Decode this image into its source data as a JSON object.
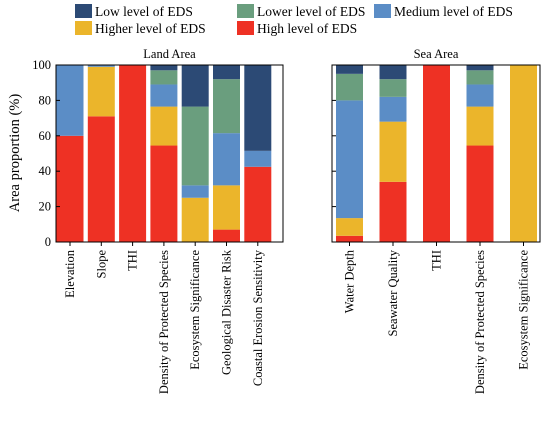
{
  "chart_data": {
    "type": "bar",
    "stacked": true,
    "ylabel": "Area proportion (%)",
    "ylim": [
      0,
      100
    ],
    "yticks": [
      0,
      20,
      40,
      60,
      80,
      100
    ],
    "legend": [
      {
        "name": "Low level of EDS",
        "color": "#2c4a75"
      },
      {
        "name": "Lower level of EDS",
        "color": "#6a9e7e"
      },
      {
        "name": "Medium level of EDS",
        "color": "#5b8dc6"
      },
      {
        "name": "Higher level of EDS",
        "color": "#ebb52b"
      },
      {
        "name": "High level of EDS",
        "color": "#ee3124"
      }
    ],
    "panels": [
      {
        "title": "Land Area",
        "categories": [
          "Elevation",
          "Slope",
          "THI",
          "Density of Protected Species",
          "Ecosystem Significance",
          "Geological Disaster Risk",
          "Coastal Erosion Sensitivity"
        ],
        "series": [
          {
            "name": "High level of EDS",
            "values": [
              60,
              71,
              100,
              54.5,
              0,
              7,
              42.5
            ]
          },
          {
            "name": "Higher level of EDS",
            "values": [
              0,
              28,
              0,
              22,
              25,
              25,
              0
            ]
          },
          {
            "name": "Medium level of EDS",
            "values": [
              40,
              1,
              0,
              12.5,
              7,
              29.5,
              9
            ]
          },
          {
            "name": "Lower level of EDS",
            "values": [
              0,
              0,
              0,
              8,
              44.5,
              30.5,
              0
            ]
          },
          {
            "name": "Low level of EDS",
            "values": [
              0,
              0,
              0,
              3,
              23.5,
              8,
              48.5
            ]
          }
        ]
      },
      {
        "title": "Sea Area",
        "categories": [
          "Water Depth",
          "Seawater Quality",
          "THI",
          "Density of Protected Species",
          "Ecosystem Significance"
        ],
        "series": [
          {
            "name": "High level of EDS",
            "values": [
              3.5,
              34,
              100,
              54.5,
              0
            ]
          },
          {
            "name": "Higher level of EDS",
            "values": [
              10,
              34,
              0,
              22,
              100
            ]
          },
          {
            "name": "Medium level of EDS",
            "values": [
              66.5,
              14,
              0,
              12.5,
              0
            ]
          },
          {
            "name": "Lower level of EDS",
            "values": [
              15,
              10,
              0,
              8,
              0
            ]
          },
          {
            "name": "Low level of EDS",
            "values": [
              5,
              8,
              0,
              3,
              0
            ]
          }
        ]
      }
    ]
  }
}
